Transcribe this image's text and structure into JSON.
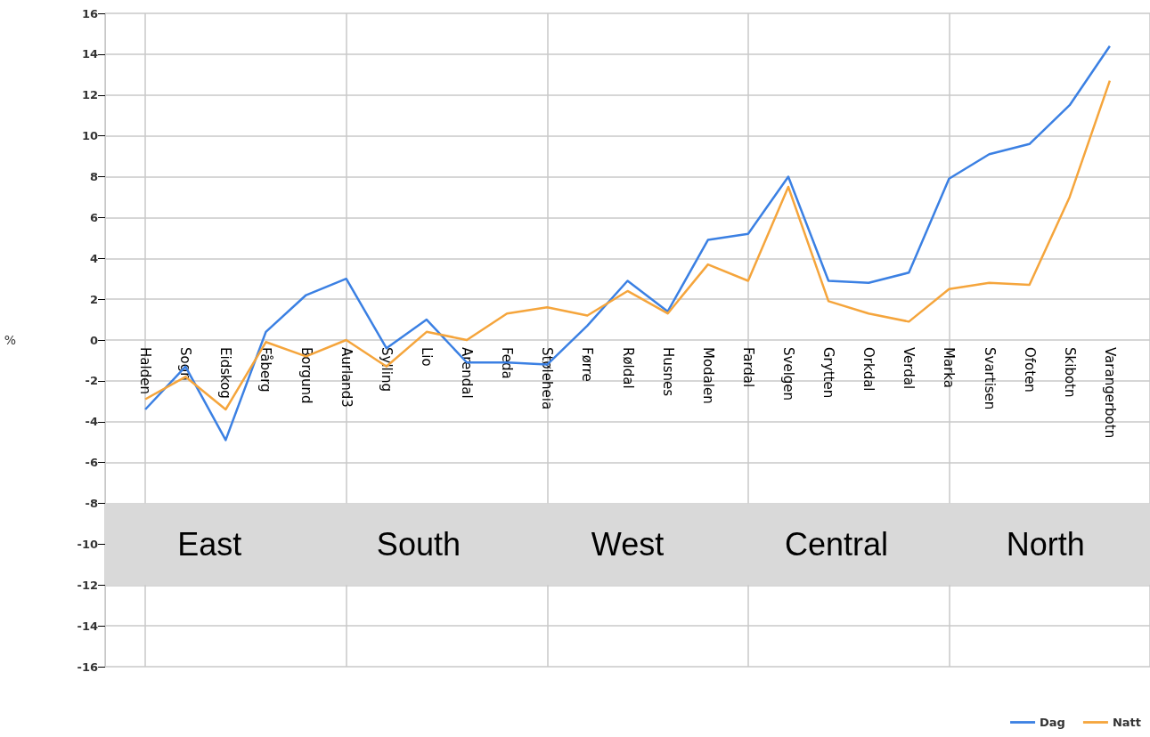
{
  "chart_data": {
    "type": "line",
    "ylabel": "%",
    "categories": [
      "Halden",
      "Sogn",
      "Eidskog",
      "Fåberg",
      "Borgund",
      "Aurland3",
      "Sylling",
      "Lio",
      "Arendal",
      "Feda",
      "Støleheia",
      "Førre",
      "Røldal",
      "Husnes",
      "Modalen",
      "Fardal",
      "Svelgen",
      "Grytten",
      "Orkdal",
      "Verdal",
      "Marka",
      "Svartisen",
      "Ofoten",
      "Skibotn",
      "Varangerbotn"
    ],
    "series": [
      {
        "name": "Dag",
        "color": "#3b80e3",
        "values": [
          -3.4,
          -1.3,
          -4.9,
          0.4,
          2.2,
          3.0,
          -0.4,
          1.0,
          -1.1,
          -1.1,
          -1.2,
          0.7,
          2.9,
          1.4,
          4.9,
          5.2,
          8.0,
          2.9,
          2.8,
          3.3,
          7.9,
          9.1,
          9.6,
          11.5,
          14.4
        ]
      },
      {
        "name": "Natt",
        "color": "#f5a53c",
        "values": [
          -2.9,
          -1.8,
          -3.4,
          -0.1,
          -0.8,
          0.0,
          -1.3,
          0.4,
          0.0,
          1.3,
          1.6,
          1.2,
          2.4,
          1.3,
          3.7,
          2.9,
          7.5,
          1.9,
          1.3,
          0.9,
          2.5,
          2.8,
          2.7,
          7.0,
          12.7
        ]
      }
    ],
    "ylim": [
      -16,
      16
    ],
    "yticks": [
      -16,
      -14,
      -12,
      -10,
      -8,
      -6,
      -4,
      -2,
      0,
      2,
      4,
      6,
      8,
      10,
      12,
      14,
      16
    ],
    "bands": [
      {
        "axis": "y",
        "from": -8,
        "to": -12,
        "color": "#d9d9d9"
      }
    ],
    "annotations": [
      "East",
      "South",
      "West",
      "Central",
      "North"
    ],
    "grid": true,
    "legend": "bottom right",
    "marker": "none"
  }
}
